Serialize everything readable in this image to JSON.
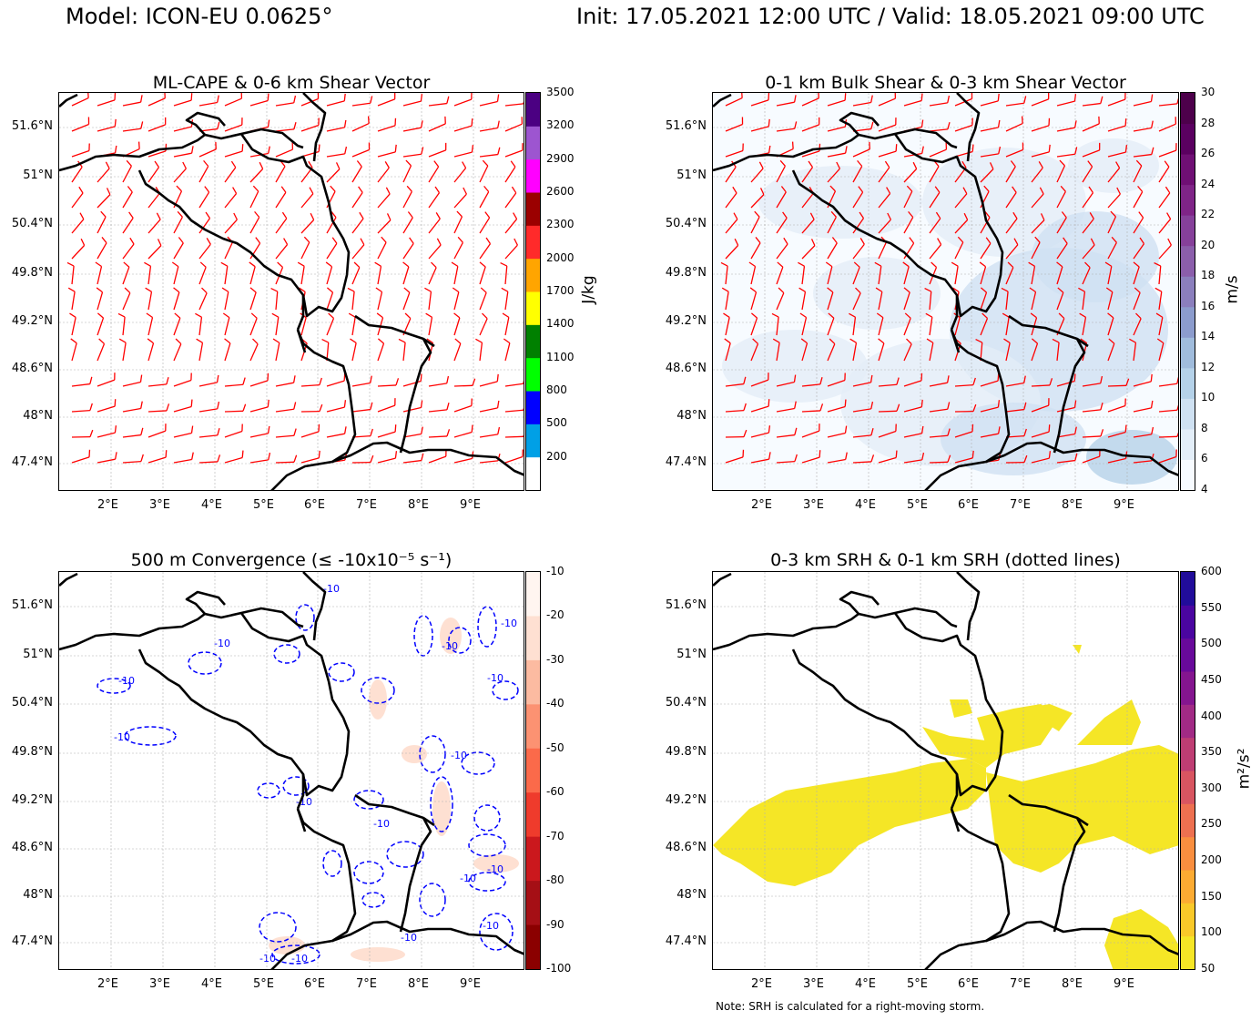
{
  "header": {
    "model": "Model: ICON-EU 0.0625°",
    "time": "Init: 17.05.2021 12:00 UTC / Valid: 18.05.2021 09:00 UTC"
  },
  "note": "Note: SRH is calculated for a right-moving storm.",
  "chart_data": [
    {
      "id": "cape",
      "type": "heatmap",
      "title": "ML-CAPE & 0-6 km Shear Vector",
      "xticks": [
        "2°E",
        "3°E",
        "4°E",
        "5°E",
        "6°E",
        "7°E",
        "8°E",
        "9°E"
      ],
      "yticks": [
        "51.6°N",
        "51°N",
        "50.4°N",
        "49.8°N",
        "49.2°N",
        "48.6°N",
        "48°N",
        "47.4°N"
      ],
      "xlim": [
        1.0,
        10.0
      ],
      "ylim": [
        47.0,
        52.0
      ],
      "colorbar_label": "J/kg",
      "colorbar_ticks": [
        "200",
        "500",
        "800",
        "1100",
        "1400",
        "1700",
        "2000",
        "2300",
        "2600",
        "2900",
        "3200",
        "3500"
      ],
      "colorbar_colors": [
        "#ffffff",
        "#00a0e6",
        "#0000ff",
        "#00ff00",
        "#008000",
        "#ffff00",
        "#ffa500",
        "#ff2a2a",
        "#9b0000",
        "#ff00ff",
        "#9d55d0",
        "#4b0082"
      ],
      "overlay": "wind barbs (red)",
      "barb_color": "#ff0000"
    },
    {
      "id": "shear",
      "type": "heatmap",
      "title": "0-1 km Bulk Shear & 0-3 km Shear Vector",
      "xticks": [
        "2°E",
        "3°E",
        "4°E",
        "5°E",
        "6°E",
        "7°E",
        "8°E",
        "9°E"
      ],
      "yticks": [
        "51.6°N",
        "51°N",
        "50.4°N",
        "49.8°N",
        "49.2°N",
        "48.6°N",
        "48°N",
        "47.4°N"
      ],
      "xlim": [
        1.0,
        10.0
      ],
      "ylim": [
        47.0,
        52.0
      ],
      "colorbar_label": "m/s",
      "colorbar_ticks": [
        "4",
        "6",
        "8",
        "10",
        "12",
        "14",
        "16",
        "18",
        "20",
        "22",
        "24",
        "26",
        "28",
        "30"
      ],
      "colorbar_colors": [
        "#f7fbff",
        "#e3eef8",
        "#cfe1f2",
        "#b5d2e9",
        "#a0bcdc",
        "#8c9ccd",
        "#8b7fbd",
        "#8b5eab",
        "#86409a",
        "#7f2487",
        "#6f0f74",
        "#5a0060",
        "#4d004b"
      ],
      "overlay": "wind barbs (red)",
      "barb_color": "#ff0000"
    },
    {
      "id": "conv",
      "type": "heatmap",
      "title": "500 m Convergence (≤ -10x10⁻⁵ s⁻¹)",
      "xticks": [
        "2°E",
        "3°E",
        "4°E",
        "5°E",
        "6°E",
        "7°E",
        "8°E",
        "9°E"
      ],
      "yticks": [
        "51.6°N",
        "51°N",
        "50.4°N",
        "49.8°N",
        "49.2°N",
        "48.6°N",
        "48°N",
        "47.4°N"
      ],
      "xlim": [
        1.0,
        10.0
      ],
      "ylim": [
        47.0,
        52.0
      ],
      "colorbar_ticks": [
        "-10",
        "-20",
        "-30",
        "-40",
        "-50",
        "-60",
        "-70",
        "-80",
        "-90",
        "-100"
      ],
      "colorbar_colors": [
        "#fff5f0",
        "#fee0d2",
        "#fcbba1",
        "#fc9272",
        "#fb6a4a",
        "#ef3b2c",
        "#cb181d",
        "#a50f15",
        "#8b0000"
      ],
      "contour_label": "-10",
      "contour_color": "#0000ff"
    },
    {
      "id": "srh",
      "type": "heatmap",
      "title": "0-3 km SRH & 0-1 km SRH (dotted lines)",
      "xticks": [
        "2°E",
        "3°E",
        "4°E",
        "5°E",
        "6°E",
        "7°E",
        "8°E",
        "9°E"
      ],
      "yticks": [
        "51.6°N",
        "51°N",
        "50.4°N",
        "49.8°N",
        "49.2°N",
        "48.6°N",
        "48°N",
        "47.4°N"
      ],
      "xlim": [
        1.0,
        10.0
      ],
      "ylim": [
        47.0,
        52.0
      ],
      "colorbar_label": "m²/s²",
      "colorbar_ticks": [
        "50",
        "100",
        "150",
        "200",
        "250",
        "300",
        "350",
        "400",
        "450",
        "500",
        "550",
        "600"
      ],
      "colorbar_colors": [
        "#f5e626",
        "#f9c929",
        "#fcab32",
        "#f98e3f",
        "#ed7050",
        "#d85561",
        "#be3d73",
        "#a12a85",
        "#84158f",
        "#68099a",
        "#4a05a0",
        "#210c9a"
      ],
      "fill_color": "#f5e626"
    }
  ]
}
